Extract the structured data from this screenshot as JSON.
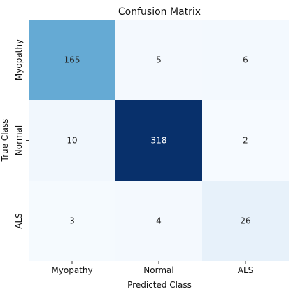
{
  "chart_data": {
    "type": "heatmap",
    "title": "Confusion Matrix",
    "xlabel": "Predicted Class",
    "ylabel": "True Class",
    "x_categories": [
      "Myopathy",
      "Normal",
      "ALS"
    ],
    "y_categories": [
      "Myopathy",
      "Normal",
      "ALS"
    ],
    "values": [
      [
        165,
        5,
        6
      ],
      [
        10,
        318,
        2
      ],
      [
        3,
        4,
        26
      ]
    ],
    "colormap": "Blues",
    "color_range": [
      0,
      318
    ],
    "grid": false,
    "legend": "none"
  }
}
